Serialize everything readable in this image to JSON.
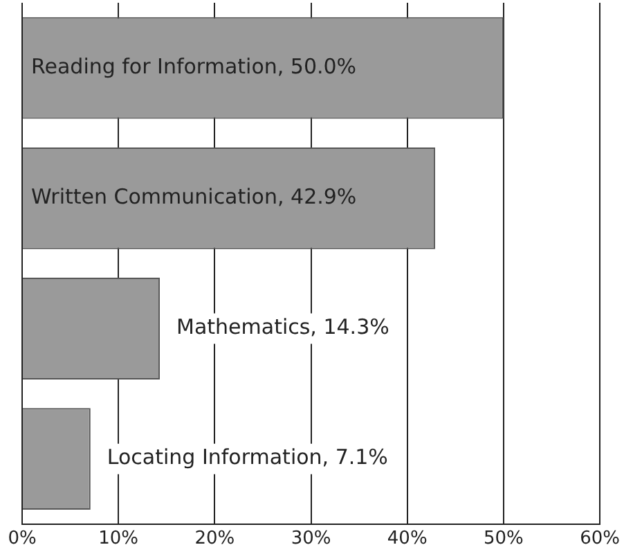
{
  "chart_data": {
    "type": "bar",
    "orientation": "horizontal",
    "categories": [
      null,
      null,
      null,
      null
    ],
    "values": [
      50.0,
      42.9,
      14.3,
      7.1
    ],
    "color": "#9a9a9a",
    "value_labels": [
      "Reading for Information, 50.0%",
      "Written Communication, 42.9%",
      "Mathematics, 14.3%",
      "Locating Information, 7.1%"
    ],
    "xlim": [
      0,
      60
    ],
    "xticks": [
      {
        "value": 0,
        "label": "0%"
      },
      {
        "value": 10,
        "label": "10%"
      },
      {
        "value": 20,
        "label": "20%"
      },
      {
        "value": 30,
        "label": "30%"
      },
      {
        "value": 40,
        "label": "40%"
      },
      {
        "value": 50,
        "label": "50%"
      },
      {
        "value": 60,
        "label": "60%"
      }
    ],
    "grid": "x",
    "tick_labels": "x",
    "legend": false
  }
}
